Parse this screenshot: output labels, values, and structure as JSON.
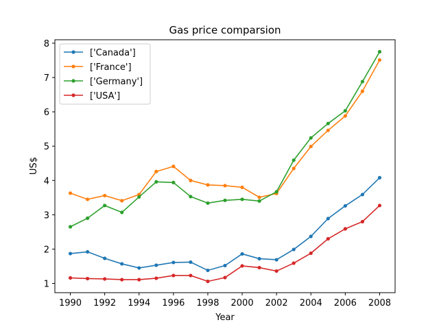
{
  "chart_data": {
    "type": "line",
    "title": "Gas price comparsion",
    "xlabel": "Year",
    "ylabel": "US$",
    "xlim": [
      1989.1,
      2008.9
    ],
    "ylim": [
      0.73,
      8.1
    ],
    "xticks": [
      1990,
      1992,
      1994,
      1996,
      1998,
      2000,
      2002,
      2004,
      2006,
      2008
    ],
    "yticks": [
      1,
      2,
      3,
      4,
      5,
      6,
      7,
      8
    ],
    "legend_position": "upper-left",
    "grid": false,
    "x": [
      1990,
      1991,
      1992,
      1993,
      1994,
      1995,
      1996,
      1997,
      1998,
      1999,
      2000,
      2001,
      2002,
      2003,
      2004,
      2005,
      2006,
      2007,
      2008
    ],
    "series": [
      {
        "name": "['Canada']",
        "color": "#1f77b4",
        "values": [
          1.87,
          1.92,
          1.73,
          1.57,
          1.45,
          1.53,
          1.61,
          1.62,
          1.38,
          1.52,
          1.86,
          1.72,
          1.69,
          1.99,
          2.37,
          2.89,
          3.26,
          3.59,
          4.08
        ]
      },
      {
        "name": "['France']",
        "color": "#ff7f0e",
        "values": [
          3.63,
          3.45,
          3.56,
          3.41,
          3.59,
          4.26,
          4.41,
          4.0,
          3.87,
          3.85,
          3.8,
          3.51,
          3.62,
          4.35,
          4.99,
          5.46,
          5.88,
          6.6,
          7.51
        ]
      },
      {
        "name": "['Germany']",
        "color": "#2ca02c",
        "values": [
          2.65,
          2.9,
          3.27,
          3.07,
          3.52,
          3.96,
          3.94,
          3.53,
          3.34,
          3.42,
          3.45,
          3.4,
          3.67,
          4.59,
          5.24,
          5.66,
          6.03,
          6.88,
          7.75
        ]
      },
      {
        "name": "['USA']",
        "color": "#d62728",
        "values": [
          1.16,
          1.14,
          1.13,
          1.11,
          1.11,
          1.15,
          1.23,
          1.23,
          1.06,
          1.17,
          1.51,
          1.46,
          1.36,
          1.59,
          1.88,
          2.3,
          2.59,
          2.8,
          3.27
        ]
      }
    ]
  }
}
